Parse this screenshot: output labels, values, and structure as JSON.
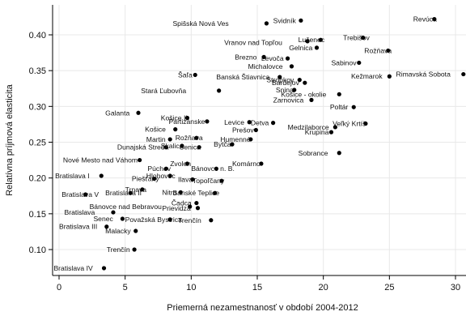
{
  "chart_data": {
    "type": "scatter",
    "xlabel": "Priemerná nezamestnanosť v období 2004-2012",
    "ylabel": "Relatívna príjmová elasticita",
    "xlim": [
      -0.5,
      30.6
    ],
    "ylim": [
      0.065,
      0.438
    ],
    "xticks": [
      0,
      5,
      10,
      15,
      20,
      25,
      30
    ],
    "yticks": [
      0.1,
      0.15,
      0.2,
      0.25,
      0.3,
      0.35,
      0.4
    ],
    "ytick_labels": [
      "0.10",
      "0.15",
      "0.20",
      "0.25",
      "0.30",
      "0.35",
      "0.40"
    ],
    "grid": true,
    "marker_color": "#000000",
    "points": [
      {
        "label": "Revúca",
        "x": 28.4,
        "y": 0.422
      },
      {
        "label": "Svidník",
        "x": 18.3,
        "y": 0.42
      },
      {
        "label": "Spišská Nová Ves",
        "x": 15.7,
        "y": 0.416
      },
      {
        "label": "Trebišov",
        "x": 23.0,
        "y": 0.396
      },
      {
        "label": "Lučenec",
        "x": 19.8,
        "y": 0.393
      },
      {
        "label": "Vranov nad Topľou",
        "x": 18.8,
        "y": 0.391
      },
      {
        "label": "Gelnica",
        "x": 19.5,
        "y": 0.382
      },
      {
        "label": "Rožňava",
        "x": 24.9,
        "y": 0.378
      },
      {
        "label": "Brezno",
        "x": 15.5,
        "y": 0.369
      },
      {
        "label": "Levoča",
        "x": 17.3,
        "y": 0.367
      },
      {
        "label": "Sabinov",
        "x": 22.7,
        "y": 0.361
      },
      {
        "label": "Michalovce",
        "x": 17.6,
        "y": 0.356
      },
      {
        "label": "Rimavská Sobota",
        "x": 30.6,
        "y": 0.345
      },
      {
        "label": "Kežmarok",
        "x": 25.0,
        "y": 0.342
      },
      {
        "label": "Šaľa",
        "x": 10.3,
        "y": 0.344
      },
      {
        "label": "Banská Štiavnica",
        "x": 16.7,
        "y": 0.341
      },
      {
        "label": "Stropkov",
        "x": 18.2,
        "y": 0.337
      },
      {
        "label": "Bardejov",
        "x": 18.6,
        "y": 0.333
      },
      {
        "label": "Snina",
        "x": 17.8,
        "y": 0.323
      },
      {
        "label": "Stará Ľubovňa",
        "x": 12.1,
        "y": 0.322
      },
      {
        "label": "Košice - okolie",
        "x": 21.2,
        "y": 0.317
      },
      {
        "label": "Zarnovica",
        "x": 19.1,
        "y": 0.309
      },
      {
        "label": "Poltár",
        "x": 22.3,
        "y": 0.299
      },
      {
        "label": "Galanta",
        "x": 6.0,
        "y": 0.291
      },
      {
        "label": "Košice II",
        "x": 9.7,
        "y": 0.284
      },
      {
        "label": "Partizánske",
        "x": 11.2,
        "y": 0.279
      },
      {
        "label": "Levice",
        "x": 14.4,
        "y": 0.278
      },
      {
        "label": "Detva",
        "x": 16.2,
        "y": 0.277
      },
      {
        "label": "Veľký Krtíš",
        "x": 23.2,
        "y": 0.276
      },
      {
        "label": "Medzilaborce",
        "x": 20.9,
        "y": 0.271
      },
      {
        "label": "Košice",
        "x": 8.8,
        "y": 0.268
      },
      {
        "label": "Prešov",
        "x": 14.9,
        "y": 0.267
      },
      {
        "label": "Krupina",
        "x": 20.6,
        "y": 0.264
      },
      {
        "label": "Martin",
        "x": 8.4,
        "y": 0.254
      },
      {
        "label": "Rožňava (2)",
        "x": 10.4,
        "y": 0.256
      },
      {
        "label": "Humenné",
        "x": 14.5,
        "y": 0.254
      },
      {
        "label": "Bytča",
        "x": 13.1,
        "y": 0.247
      },
      {
        "label": "Skalica",
        "x": 9.3,
        "y": 0.245
      },
      {
        "label": "Dunajská Streda",
        "x": 8.1,
        "y": 0.243
      },
      {
        "label": "Senica",
        "x": 10.6,
        "y": 0.243
      },
      {
        "label": "Sobrance",
        "x": 21.2,
        "y": 0.235
      },
      {
        "label": "Nové Mesto nad Váhom",
        "x": 6.1,
        "y": 0.225
      },
      {
        "label": "Zvolen",
        "x": 9.7,
        "y": 0.22
      },
      {
        "label": "Komárno",
        "x": 15.3,
        "y": 0.22
      },
      {
        "label": "Púchov",
        "x": 8.1,
        "y": 0.213
      },
      {
        "label": "Bánovce n. B.",
        "x": 11.9,
        "y": 0.213
      },
      {
        "label": "Bratislava I",
        "x": 3.2,
        "y": 0.203
      },
      {
        "label": "Piešťany",
        "x": 7.2,
        "y": 0.199
      },
      {
        "label": "Hlohovec",
        "x": 8.4,
        "y": 0.203
      },
      {
        "label": "Ilava",
        "x": 10.1,
        "y": 0.198
      },
      {
        "label": "Topoľčany",
        "x": 12.3,
        "y": 0.196
      },
      {
        "label": "Trnava",
        "x": 6.3,
        "y": 0.184
      },
      {
        "label": "Bratislava V",
        "x": 2.0,
        "y": 0.177
      },
      {
        "label": "Bratislava II",
        "x": 5.4,
        "y": 0.179
      },
      {
        "label": "Nitra",
        "x": 9.2,
        "y": 0.18
      },
      {
        "label": "Banské Teplice",
        "x": 11.8,
        "y": 0.179
      },
      {
        "label": "Bánovce nad Bebravou",
        "x": 9.9,
        "y": 0.16
      },
      {
        "label": "Čadca",
        "x": 10.4,
        "y": 0.165
      },
      {
        "label": "Prievidza",
        "x": 10.5,
        "y": 0.158
      },
      {
        "label": "Bratislava IV (2)",
        "x": 4.1,
        "y": 0.152
      },
      {
        "label": "Senec",
        "x": 4.8,
        "y": 0.143
      },
      {
        "label": "Považská Bystrica",
        "x": 8.4,
        "y": 0.142
      },
      {
        "label": "Trenčín (2)",
        "x": 11.5,
        "y": 0.141
      },
      {
        "label": "Bratislava III",
        "x": 3.6,
        "y": 0.132
      },
      {
        "label": "Malacky",
        "x": 5.8,
        "y": 0.126
      },
      {
        "label": "Trenčín",
        "x": 5.7,
        "y": 0.1
      },
      {
        "label": "Bratislava IV",
        "x": 3.4,
        "y": 0.074
      }
    ],
    "label_text": [
      {
        "text": "Revúca",
        "x": 26.8,
        "y": 0.422
      },
      {
        "text": "Svidník",
        "x": 16.2,
        "y": 0.42
      },
      {
        "text": "Spišská Nová Ves",
        "x": 8.6,
        "y": 0.416
      },
      {
        "text": "Trebišov",
        "x": 21.5,
        "y": 0.396
      },
      {
        "text": "Lučenec",
        "x": 18.1,
        "y": 0.393
      },
      {
        "text": "Vranov nad Topľou",
        "x": 12.5,
        "y": 0.389
      },
      {
        "text": "Gelnica",
        "x": 17.4,
        "y": 0.382
      },
      {
        "text": "Rožňava",
        "x": 23.1,
        "y": 0.378
      },
      {
        "text": "Brezno",
        "x": 13.3,
        "y": 0.369
      },
      {
        "text": "Levoča",
        "x": 15.3,
        "y": 0.367
      },
      {
        "text": "Sabinov",
        "x": 20.6,
        "y": 0.361
      },
      {
        "text": "Michalovce",
        "x": 14.3,
        "y": 0.356
      },
      {
        "text": "Rimavská Sobota",
        "x": 25.5,
        "y": 0.345
      },
      {
        "text": "Kežmarok",
        "x": 22.1,
        "y": 0.342
      },
      {
        "text": "Šaľa",
        "x": 9.0,
        "y": 0.344
      },
      {
        "text": "Banská Štiavnica",
        "x": 11.9,
        "y": 0.341
      },
      {
        "text": "Stropkov",
        "x": 15.7,
        "y": 0.337
      },
      {
        "text": "Bardejov",
        "x": 16.1,
        "y": 0.333
      },
      {
        "text": "Snina",
        "x": 16.4,
        "y": 0.323
      },
      {
        "text": "Stará Ľubovňa",
        "x": 6.2,
        "y": 0.322
      },
      {
        "text": "Košice - okolie",
        "x": 16.8,
        "y": 0.317
      },
      {
        "text": "Zarnovica",
        "x": 16.2,
        "y": 0.309
      },
      {
        "text": "Poltár",
        "x": 20.5,
        "y": 0.299
      },
      {
        "text": "Galanta",
        "x": 3.5,
        "y": 0.291
      },
      {
        "text": "Košice II",
        "x": 7.7,
        "y": 0.284
      },
      {
        "text": "Partizánske",
        "x": 8.3,
        "y": 0.279
      },
      {
        "text": "Levice",
        "x": 12.5,
        "y": 0.278
      },
      {
        "text": "Detva",
        "x": 14.5,
        "y": 0.277
      },
      {
        "text": "Veľký Krtíš",
        "x": 20.7,
        "y": 0.276
      },
      {
        "text": "Medzilaborce",
        "x": 17.3,
        "y": 0.271
      },
      {
        "text": "Košice",
        "x": 6.5,
        "y": 0.268
      },
      {
        "text": "Prešov",
        "x": 13.1,
        "y": 0.267
      },
      {
        "text": "Krupina",
        "x": 18.6,
        "y": 0.264
      },
      {
        "text": "Martin",
        "x": 6.6,
        "y": 0.254
      },
      {
        "text": "Rožňava",
        "x": 8.8,
        "y": 0.256
      },
      {
        "text": "Humenné",
        "x": 12.2,
        "y": 0.254
      },
      {
        "text": "Bytča",
        "x": 11.7,
        "y": 0.247
      },
      {
        "text": "Skalica",
        "x": 7.7,
        "y": 0.245
      },
      {
        "text": "Dunajská Streda",
        "x": 4.4,
        "y": 0.243
      },
      {
        "text": "Senica",
        "x": 9.1,
        "y": 0.243
      },
      {
        "text": "Sobrance",
        "x": 18.1,
        "y": 0.235
      },
      {
        "text": "Nové Mesto nad Váhom",
        "x": 0.3,
        "y": 0.225
      },
      {
        "text": "Zvolen",
        "x": 8.4,
        "y": 0.22
      },
      {
        "text": "Komárno",
        "x": 13.1,
        "y": 0.22
      },
      {
        "text": "Púchov",
        "x": 6.7,
        "y": 0.213
      },
      {
        "text": "Bánovce n. B.",
        "x": 10.0,
        "y": 0.213
      },
      {
        "text": "Bratislava I",
        "x": -0.3,
        "y": 0.203
      },
      {
        "text": "Piešťany",
        "x": 5.5,
        "y": 0.199
      },
      {
        "text": "Hlohovec",
        "x": 6.6,
        "y": 0.203
      },
      {
        "text": "Ilava",
        "x": 9.0,
        "y": 0.198
      },
      {
        "text": "Topoľčany",
        "x": 10.1,
        "y": 0.196
      },
      {
        "text": "Trnava",
        "x": 5.0,
        "y": 0.184
      },
      {
        "text": "Bratislava V",
        "x": 0.2,
        "y": 0.177
      },
      {
        "text": "Bratislava II",
        "x": 3.5,
        "y": 0.179
      },
      {
        "text": "Nitra",
        "x": 7.8,
        "y": 0.18
      },
      {
        "text": "Banské Teplice",
        "x": 8.6,
        "y": 0.179
      },
      {
        "text": "Bánovce nad Bebravou",
        "x": 2.3,
        "y": 0.16
      },
      {
        "text": "Čadca",
        "x": 8.5,
        "y": 0.165
      },
      {
        "text": "Prievidza",
        "x": 7.8,
        "y": 0.158
      },
      {
        "text": "Bratislava",
        "x": 0.4,
        "y": 0.152
      },
      {
        "text": "Senec",
        "x": 2.6,
        "y": 0.143
      },
      {
        "text": "Považská Bystrica",
        "x": 5.0,
        "y": 0.142
      },
      {
        "text": "Trenčín",
        "x": 9.0,
        "y": 0.141
      },
      {
        "text": "Bratislava III",
        "x": 0.0,
        "y": 0.132
      },
      {
        "text": "Malacky",
        "x": 3.5,
        "y": 0.126
      },
      {
        "text": "Trenčín",
        "x": 3.6,
        "y": 0.1
      },
      {
        "text": "Bratislava IV",
        "x": -0.4,
        "y": 0.074
      }
    ]
  }
}
